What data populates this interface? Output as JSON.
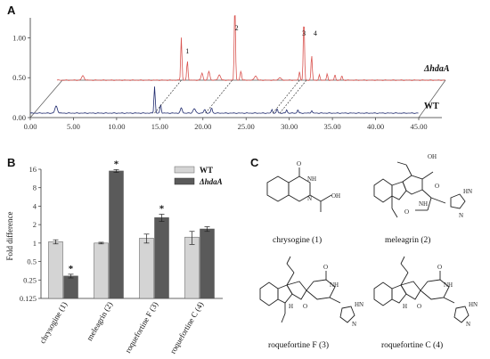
{
  "panels": {
    "a": "A",
    "b": "B",
    "c": "C"
  },
  "chart_data": [
    {
      "type": "line",
      "panel": "A",
      "x_ticks": [
        "0.00",
        "5.00",
        "10.00",
        "15.00",
        "20.00",
        "25.00",
        "30.00",
        "35.00",
        "40.00",
        "45.00"
      ],
      "y_ticks": [
        "0.00",
        "0.50",
        "1.00"
      ],
      "xlim": [
        0,
        45
      ],
      "ylim": [
        0,
        1.25
      ],
      "series": [
        {
          "name": "ΔhdaA",
          "color": "#d9534f"
        },
        {
          "name": "WT",
          "color": "#1f2a6e"
        }
      ],
      "peak_labels": [
        "1",
        "2",
        "3",
        "4"
      ],
      "peak_times": [
        15.1,
        20.6,
        28.6,
        29.5
      ]
    },
    {
      "type": "bar",
      "panel": "B",
      "categories": [
        "chrysogine (1)",
        "meleagrin (2)",
        "roquefortine F (3)",
        "roquefortine C (4)"
      ],
      "ylabel": "Fold difference",
      "y_scale": "log2",
      "y_ticks": [
        "0.125",
        "0.25",
        "0.5",
        "1",
        "2",
        "4",
        "8",
        "16"
      ],
      "ylim": [
        0.125,
        16
      ],
      "series": [
        {
          "name": "WT",
          "color": "#d4d4d4",
          "values": [
            1.05,
            1.0,
            1.2,
            1.25
          ],
          "errors": [
            0.08,
            0.03,
            0.2,
            0.3
          ]
        },
        {
          "name": "ΔhdaA",
          "color": "#5a5a5a",
          "values": [
            0.29,
            15.0,
            2.6,
            1.7
          ],
          "errors": [
            0.02,
            0.8,
            0.35,
            0.15
          ]
        }
      ],
      "significance": [
        "*",
        "*",
        "*",
        ""
      ],
      "legend": [
        "WT",
        "ΔhdaA"
      ]
    }
  ],
  "structures": {
    "captions": [
      "chrysogine (1)",
      "meleagrin (2)",
      "roquefortine F (3)",
      "roquefortine C (4)"
    ],
    "atoms": {
      "O": "O",
      "OH": "OH",
      "NH": "NH",
      "N": "N",
      "H": "H",
      "HN": "HN"
    }
  }
}
